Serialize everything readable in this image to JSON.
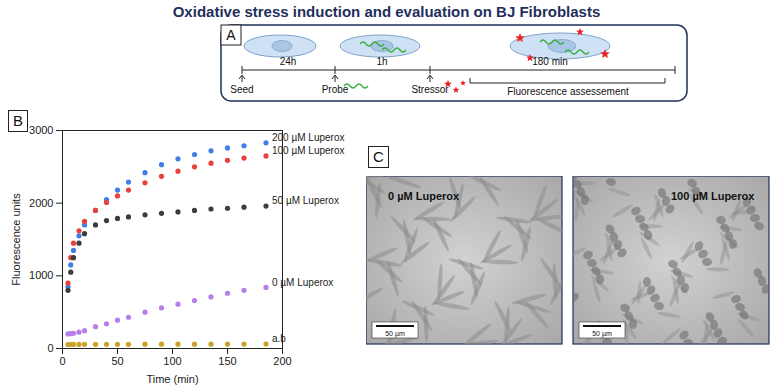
{
  "title": "Oxidative stress induction and evaluation on BJ Fibroblasts",
  "panels": {
    "A": {
      "label": "A",
      "timeline": {
        "intervals": [
          "24h",
          "1h",
          "180 min"
        ],
        "events": [
          "Seed",
          "Probe",
          "Stressor"
        ],
        "bracket": "Fluorescence assessement"
      }
    },
    "B": {
      "label": "B"
    },
    "C": {
      "label": "C",
      "images": [
        {
          "label": "0 µM Luperox",
          "scale_bar": "50 µm"
        },
        {
          "label": "100 µM Luperox",
          "scale_bar": "50 µm"
        }
      ]
    }
  },
  "chart_data": {
    "type": "scatter",
    "marker": "circle",
    "x_label": "Time (min)",
    "y_label": "Fluorescence units",
    "x": [
      5,
      7.5,
      10,
      15,
      20,
      30,
      40,
      50,
      60,
      75,
      90,
      105,
      120,
      135,
      150,
      165,
      185
    ],
    "series": [
      {
        "name": "200 µM Luperox",
        "color": "#3f7fe6",
        "values": [
          850,
          1150,
          1350,
          1550,
          1700,
          1900,
          2050,
          2180,
          2290,
          2420,
          2530,
          2610,
          2670,
          2720,
          2760,
          2790,
          2830
        ]
      },
      {
        "name": "100 µM Luperox",
        "color": "#e8413c",
        "values": [
          900,
          1250,
          1450,
          1620,
          1750,
          1900,
          2010,
          2100,
          2180,
          2280,
          2370,
          2440,
          2500,
          2550,
          2590,
          2620,
          2650
        ]
      },
      {
        "name": "50 µM Luperox",
        "color": "#3c3c3c",
        "values": [
          800,
          1050,
          1250,
          1450,
          1580,
          1700,
          1760,
          1790,
          1810,
          1840,
          1860,
          1880,
          1900,
          1920,
          1930,
          1945,
          1960
        ]
      },
      {
        "name": "0 µM Luperox",
        "color": "#b67ee6",
        "values": [
          200,
          205,
          210,
          225,
          245,
          300,
          340,
          390,
          430,
          500,
          560,
          610,
          660,
          710,
          760,
          800,
          840
        ]
      },
      {
        "name": "a.b",
        "color": "#c9a227",
        "values": [
          55,
          55,
          56,
          56,
          57,
          57,
          58,
          58,
          58,
          59,
          59,
          60,
          60,
          60,
          61,
          61,
          62
        ]
      }
    ],
    "xlim": [
      0,
      200
    ],
    "xticks": [
      0,
      50,
      100,
      150,
      200
    ],
    "ylim": [
      0,
      3000
    ],
    "yticks": [
      0,
      1000,
      2000,
      3000
    ],
    "grid": false
  }
}
